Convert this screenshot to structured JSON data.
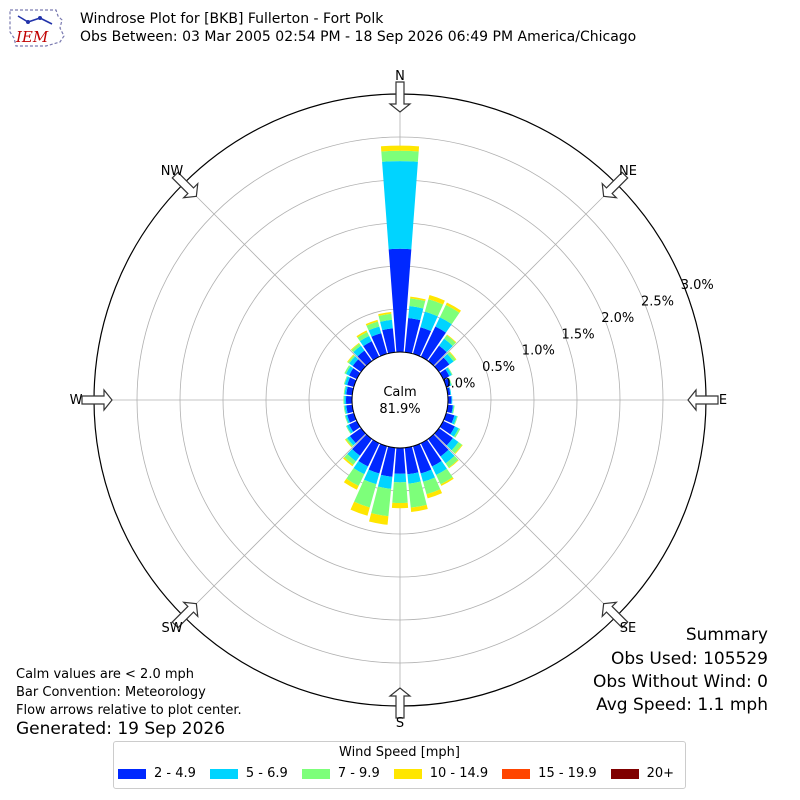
{
  "header": {
    "logo_text": "IEM",
    "title_line1": "Windrose Plot for [BKB] Fullerton - Fort Polk",
    "title_line2": "Obs Between: 03 Mar 2005 02:54 PM - 18 Sep 2026 06:49 PM America/Chicago"
  },
  "chart_data": {
    "type": "windrose",
    "calm_label": "Calm",
    "calm_value": "81.9%",
    "calm_percent": 81.9,
    "radial_ticks": [
      "0.0%",
      "0.5%",
      "1.0%",
      "1.5%",
      "2.0%",
      "2.5%",
      "3.0%"
    ],
    "radial_tick_values": [
      0.0,
      0.5,
      1.0,
      1.5,
      2.0,
      2.5,
      3.0
    ],
    "rmax": 3.0,
    "directions": [
      "N",
      "NE",
      "E",
      "SE",
      "S",
      "SW",
      "W",
      "NW"
    ],
    "bins": [
      {
        "label": "2 - 4.9",
        "color": "#0028ff"
      },
      {
        "label": "5 - 6.9",
        "color": "#00d4ff"
      },
      {
        "label": "7 - 9.9",
        "color": "#7dff7a"
      },
      {
        "label": "10 - 14.9",
        "color": "#ffe600"
      },
      {
        "label": "15 - 19.9",
        "color": "#ff4500"
      },
      {
        "label": "20+",
        "color": "#800000"
      }
    ],
    "sectors": [
      {
        "dir": 0,
        "values": [
          1.2,
          1.02,
          0.12,
          0.06,
          0,
          0
        ]
      },
      {
        "dir": 10,
        "values": [
          0.4,
          0.14,
          0.09,
          0.02,
          0,
          0
        ]
      },
      {
        "dir": 20,
        "values": [
          0.32,
          0.19,
          0.15,
          0.05,
          0,
          0
        ]
      },
      {
        "dir": 30,
        "values": [
          0.39,
          0.12,
          0.16,
          0.03,
          0,
          0
        ]
      },
      {
        "dir": 40,
        "values": [
          0.22,
          0.1,
          0.05,
          0.01,
          0,
          0
        ]
      },
      {
        "dir": 50,
        "values": [
          0.15,
          0.06,
          0.03,
          0.01,
          0,
          0
        ]
      },
      {
        "dir": 60,
        "values": [
          0.08,
          0.03,
          0.01,
          0.0,
          0,
          0
        ]
      },
      {
        "dir": 70,
        "values": [
          0.05,
          0.01,
          0.01,
          0.0,
          0,
          0
        ]
      },
      {
        "dir": 80,
        "values": [
          0.03,
          0.01,
          0.0,
          0.0,
          0,
          0
        ]
      },
      {
        "dir": 90,
        "values": [
          0.04,
          0.01,
          0.0,
          0.0,
          0,
          0
        ]
      },
      {
        "dir": 100,
        "values": [
          0.06,
          0.01,
          0.01,
          0.0,
          0,
          0
        ]
      },
      {
        "dir": 110,
        "values": [
          0.1,
          0.03,
          0.01,
          0.0,
          0,
          0
        ]
      },
      {
        "dir": 120,
        "values": [
          0.15,
          0.05,
          0.02,
          0.0,
          0,
          0
        ]
      },
      {
        "dir": 130,
        "values": [
          0.2,
          0.08,
          0.05,
          0.01,
          0,
          0
        ]
      },
      {
        "dir": 140,
        "values": [
          0.25,
          0.1,
          0.06,
          0.01,
          0,
          0
        ]
      },
      {
        "dir": 150,
        "values": [
          0.3,
          0.11,
          0.12,
          0.02,
          0,
          0
        ]
      },
      {
        "dir": 160,
        "values": [
          0.33,
          0.1,
          0.15,
          0.05,
          0,
          0
        ]
      },
      {
        "dir": 170,
        "values": [
          0.31,
          0.11,
          0.28,
          0.05,
          0,
          0
        ]
      },
      {
        "dir": 180,
        "values": [
          0.3,
          0.1,
          0.24,
          0.06,
          0,
          0
        ]
      },
      {
        "dir": 190,
        "values": [
          0.34,
          0.14,
          0.32,
          0.1,
          0,
          0
        ]
      },
      {
        "dir": 200,
        "values": [
          0.33,
          0.13,
          0.28,
          0.1,
          0,
          0
        ]
      },
      {
        "dir": 210,
        "values": [
          0.3,
          0.1,
          0.15,
          0.05,
          0,
          0
        ]
      },
      {
        "dir": 220,
        "values": [
          0.24,
          0.08,
          0.05,
          0.02,
          0,
          0
        ]
      },
      {
        "dir": 230,
        "values": [
          0.16,
          0.04,
          0.02,
          0.01,
          0,
          0
        ]
      },
      {
        "dir": 240,
        "values": [
          0.1,
          0.03,
          0.01,
          0.0,
          0,
          0
        ]
      },
      {
        "dir": 250,
        "values": [
          0.08,
          0.02,
          0.01,
          0.0,
          0,
          0
        ]
      },
      {
        "dir": 260,
        "values": [
          0.07,
          0.02,
          0.01,
          0.0,
          0,
          0
        ]
      },
      {
        "dir": 270,
        "values": [
          0.07,
          0.02,
          0.01,
          0.0,
          0,
          0
        ]
      },
      {
        "dir": 280,
        "values": [
          0.07,
          0.02,
          0.01,
          0.0,
          0,
          0
        ]
      },
      {
        "dir": 290,
        "values": [
          0.08,
          0.03,
          0.01,
          0.0,
          0,
          0
        ]
      },
      {
        "dir": 300,
        "values": [
          0.1,
          0.04,
          0.02,
          0.0,
          0,
          0
        ]
      },
      {
        "dir": 310,
        "values": [
          0.12,
          0.05,
          0.02,
          0.01,
          0,
          0
        ]
      },
      {
        "dir": 320,
        "values": [
          0.15,
          0.07,
          0.03,
          0.01,
          0,
          0
        ]
      },
      {
        "dir": 330,
        "values": [
          0.2,
          0.07,
          0.05,
          0.02,
          0,
          0
        ]
      },
      {
        "dir": 340,
        "values": [
          0.25,
          0.08,
          0.06,
          0.02,
          0,
          0
        ]
      },
      {
        "dir": 350,
        "values": [
          0.28,
          0.1,
          0.07,
          0.02,
          0,
          0
        ]
      }
    ]
  },
  "notes": {
    "calm": "Calm values are < 2.0 mph",
    "bar": "Bar Convention: Meteorology",
    "flow": "Flow arrows relative to plot center.",
    "generated": "Generated: 19 Sep 2026"
  },
  "summary": {
    "title": "Summary",
    "obs_used": "Obs Used: 105529",
    "obs_without_wind": "Obs Without Wind: 0",
    "avg_speed": "Avg Speed: 1.1 mph"
  },
  "legend": {
    "title": "Wind Speed [mph]"
  }
}
